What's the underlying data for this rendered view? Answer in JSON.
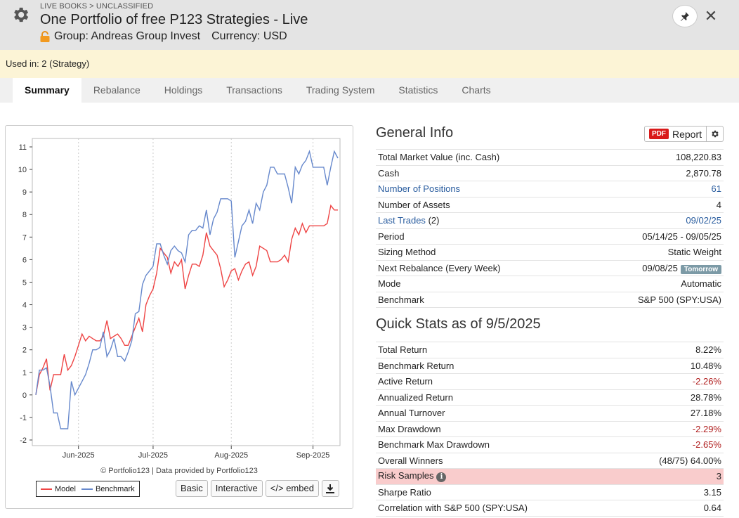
{
  "header": {
    "breadcrumb": "LIVE BOOKS > UNCLASSIFIED",
    "title": "One Portfolio of free P123 Strategies - Live",
    "group_label": "Group: Andreas Group Invest",
    "currency_label": "Currency: USD",
    "icons": {
      "settings": "gear-icon",
      "lock": "lock-icon",
      "pin": "pin-icon",
      "close": "close-icon"
    }
  },
  "notice": {
    "text": "Used in: 2 (Strategy)"
  },
  "tabs": [
    {
      "label": "Summary",
      "active": true
    },
    {
      "label": "Rebalance"
    },
    {
      "label": "Holdings"
    },
    {
      "label": "Transactions"
    },
    {
      "label": "Trading System"
    },
    {
      "label": "Statistics"
    },
    {
      "label": "Charts"
    }
  ],
  "chart": {
    "credit": "© Portfolio123 | Data provided by Portfolio123",
    "legend": [
      {
        "name": "Model",
        "color": "#ee4444"
      },
      {
        "name": "Benchmark",
        "color": "#6688cc"
      }
    ],
    "buttons": {
      "basic": "Basic",
      "interactive": "Interactive",
      "embed": "</> embed"
    }
  },
  "chart_data": {
    "type": "line",
    "ylim": [
      -2,
      11
    ],
    "y_ticks": [
      "11",
      "10",
      "9",
      "8",
      "7",
      "6",
      "5",
      "4",
      "3",
      "2",
      "1",
      "0",
      "-1",
      "-2"
    ],
    "x_ticks": [
      "Jun-2025",
      "Jul-2025",
      "Aug-2025",
      "Sep-2025"
    ],
    "x": [
      0,
      1,
      2,
      3,
      4,
      5,
      6,
      7,
      8,
      9,
      10,
      11,
      12,
      13,
      14,
      15,
      16,
      17,
      18,
      19,
      20,
      21,
      22,
      23,
      24,
      25,
      26,
      27,
      28,
      29,
      30,
      31,
      32,
      33,
      34,
      35,
      36,
      37,
      38,
      39,
      40,
      41,
      42,
      43,
      44,
      45,
      46,
      47,
      48,
      49,
      50,
      51,
      52,
      53,
      54,
      55,
      56,
      57,
      58,
      59,
      60,
      61,
      62,
      63,
      64,
      65,
      66,
      67,
      68,
      69,
      70,
      71,
      72,
      73,
      74,
      75,
      76,
      77,
      78,
      79,
      80,
      81,
      82,
      83,
      84,
      85
    ],
    "series": [
      {
        "name": "Model",
        "color": "#ee4444",
        "values": [
          0.0,
          0.9,
          1.2,
          1.6,
          0.2,
          0.9,
          0.9,
          0.9,
          1.8,
          1.1,
          1.3,
          1.7,
          2.2,
          2.7,
          2.4,
          2.6,
          2.5,
          2.4,
          2.4,
          2.6,
          3.3,
          2.5,
          2.6,
          2.7,
          2.5,
          2.2,
          2.2,
          2.6,
          3.0,
          3.4,
          2.8,
          4.0,
          4.4,
          4.7,
          5.4,
          6.5,
          6.3,
          6.1,
          5.4,
          5.9,
          5.7,
          6.0,
          4.7,
          5.3,
          5.8,
          5.8,
          5.7,
          6.2,
          7.2,
          6.6,
          6.4,
          6.2,
          5.6,
          4.8,
          5.1,
          5.5,
          5.6,
          5.1,
          5.5,
          5.8,
          5.9,
          5.3,
          5.7,
          6.6,
          6.5,
          6.4,
          5.9,
          5.9,
          5.9,
          6.0,
          6.2,
          5.9,
          6.9,
          7.4,
          7.1,
          7.6,
          7.2,
          7.5,
          7.5,
          7.5,
          7.5,
          7.5,
          7.6,
          8.4,
          8.2,
          8.2
        ]
      },
      {
        "name": "Benchmark",
        "color": "#6688cc",
        "values": [
          0.0,
          1.1,
          1.1,
          1.2,
          0.4,
          -0.8,
          -0.8,
          -1.5,
          -1.5,
          -1.5,
          0.6,
          0.0,
          0.3,
          0.6,
          0.9,
          1.4,
          2.0,
          2.0,
          2.1,
          2.8,
          1.7,
          2.0,
          2.5,
          1.7,
          1.7,
          1.5,
          1.9,
          2.4,
          3.6,
          3.7,
          4.9,
          5.3,
          5.5,
          5.7,
          6.7,
          6.7,
          6.2,
          5.8,
          6.4,
          6.6,
          6.4,
          6.3,
          5.9,
          7.1,
          7.3,
          7.3,
          7.5,
          7.4,
          8.2,
          7.1,
          7.8,
          8.1,
          8.7,
          8.7,
          8.7,
          8.6,
          6.1,
          6.8,
          7.5,
          7.7,
          8.2,
          7.6,
          8.5,
          8.2,
          9.0,
          9.3,
          10.1,
          10.1,
          9.8,
          9.8,
          9.8,
          9.2,
          8.5,
          10.1,
          9.8,
          10.2,
          10.4,
          10.8,
          10.1,
          10.1,
          10.1,
          10.1,
          9.3,
          10.1,
          10.8,
          10.5
        ]
      }
    ]
  },
  "general_info": {
    "title": "General Info",
    "report": {
      "pdf": "PDF",
      "label": "Report"
    },
    "rows": [
      {
        "label": "Total Market Value (inc. Cash)",
        "value": "108,220.83"
      },
      {
        "label": "Cash",
        "value": "2,870.78"
      },
      {
        "label": "Number of Positions",
        "value": "61"
      },
      {
        "label": "Number of Assets",
        "value": "4"
      },
      {
        "label": "Last Trades",
        "count": "(2)",
        "value": "09/02/25"
      },
      {
        "label": "Period",
        "value": "05/14/25 - 09/05/25"
      },
      {
        "label": "Sizing Method",
        "value": "Static Weight"
      },
      {
        "label": "Next Rebalance (Every Week)",
        "value": "09/08/25",
        "badge": "Tomorrow"
      },
      {
        "label": "Mode",
        "value": "Automatic"
      },
      {
        "label": "Benchmark",
        "value": "S&P 500 (SPY:USA)"
      }
    ]
  },
  "quick_stats": {
    "title": "Quick Stats as of 9/5/2025",
    "rows": [
      {
        "label": "Total Return",
        "value": "8.22%"
      },
      {
        "label": "Benchmark Return",
        "value": "10.48%"
      },
      {
        "label": "Active Return",
        "value": "-2.26%"
      },
      {
        "label": "Annualized Return",
        "value": "28.78%"
      },
      {
        "label": "Annual Turnover",
        "value": "27.18%"
      },
      {
        "label": "Max Drawdown",
        "value": "-2.29%"
      },
      {
        "label": "Benchmark Max Drawdown",
        "value": "-2.65%"
      },
      {
        "label": "Overall Winners",
        "value": "(48/75) 64.00%"
      },
      {
        "label": "Risk Samples",
        "value": "3"
      },
      {
        "label": "Sharpe Ratio",
        "value": "3.15"
      },
      {
        "label": "Correlation with S&P 500 (SPY:USA)",
        "value": "0.64"
      }
    ]
  },
  "colors": {
    "link": "#2a5d9f",
    "negative": "#b01e1e",
    "highlight": "#f9cccc",
    "notice_bg": "#fcf4d6"
  }
}
